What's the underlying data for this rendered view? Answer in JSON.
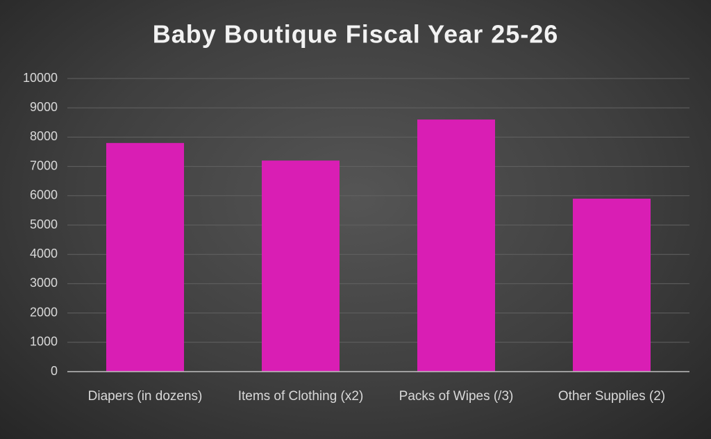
{
  "chart_data": {
    "type": "bar",
    "title": "Baby Boutique Fiscal Year 25-26",
    "categories": [
      "Diapers (in dozens)",
      "Items of Clothing (x2)",
      "Packs of Wipes (/3)",
      "Other Supplies (2)"
    ],
    "values": [
      7800,
      7200,
      8600,
      5900
    ],
    "color": "#d91eb4",
    "ylim": [
      0,
      10000
    ],
    "yticks": [
      0,
      1000,
      2000,
      3000,
      4000,
      5000,
      6000,
      7000,
      8000,
      9000,
      10000
    ],
    "grid": true
  }
}
